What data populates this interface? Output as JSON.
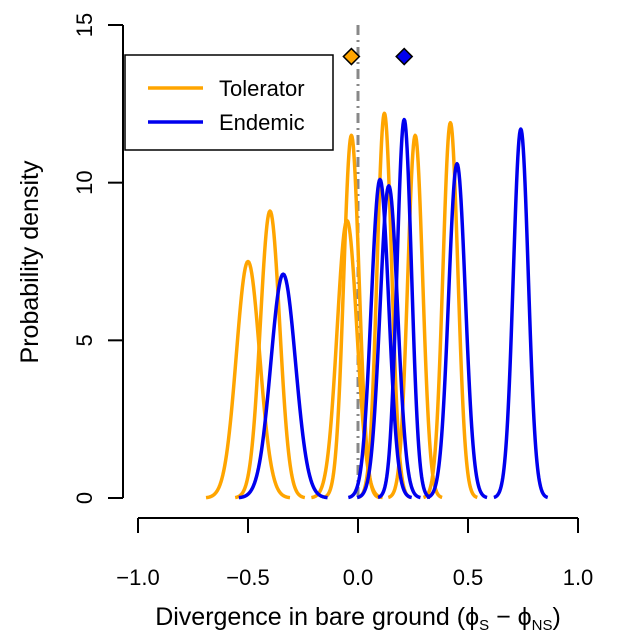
{
  "chart_data": {
    "type": "line",
    "xlabel": "Divergence in bare ground (",
    "xlabel_phi": "ϕ",
    "xlabel_sub1": "S",
    "xlabel_minus": " − ",
    "xlabel_sub2": "NS",
    "xlabel_close": ")",
    "ylabel": "Probability density",
    "xlim": [
      -1.0,
      1.0
    ],
    "ylim": [
      0,
      15
    ],
    "xticks": [
      -1.0,
      -0.5,
      0.0,
      0.5,
      1.0
    ],
    "xtick_labels": [
      "−1.0",
      "−0.5",
      "0.0",
      "0.5",
      "1.0"
    ],
    "yticks": [
      0,
      5,
      10,
      15
    ],
    "ytick_labels": [
      "0",
      "5",
      "10",
      "15"
    ],
    "legend_position": "top-left",
    "reference_line": {
      "x": 0.0,
      "style": "dash-dot",
      "color": "#888888"
    },
    "series": [
      {
        "name": "Tolerator",
        "color": "#FFA500",
        "mean_marker": {
          "x": -0.03,
          "y": 14.0
        },
        "curves": [
          {
            "mean": -0.5,
            "sd": 0.053,
            "peak": 7.5
          },
          {
            "mean": -0.4,
            "sd": 0.044,
            "peak": 9.1
          },
          {
            "mean": -0.05,
            "sd": 0.045,
            "peak": 8.8
          },
          {
            "mean": -0.03,
            "sd": 0.035,
            "peak": 11.5
          },
          {
            "mean": 0.12,
            "sd": 0.033,
            "peak": 12.2
          },
          {
            "mean": 0.26,
            "sd": 0.034,
            "peak": 11.5
          },
          {
            "mean": 0.42,
            "sd": 0.034,
            "peak": 11.9
          }
        ]
      },
      {
        "name": "Endemic",
        "color": "#0000EE",
        "mean_marker": {
          "x": 0.21,
          "y": 14.0
        },
        "curves": [
          {
            "mean": -0.34,
            "sd": 0.056,
            "peak": 7.1
          },
          {
            "mean": 0.1,
            "sd": 0.04,
            "peak": 10.1
          },
          {
            "mean": 0.14,
            "sd": 0.04,
            "peak": 9.9
          },
          {
            "mean": 0.21,
            "sd": 0.033,
            "peak": 12.0
          },
          {
            "mean": 0.45,
            "sd": 0.038,
            "peak": 10.6
          },
          {
            "mean": 0.74,
            "sd": 0.034,
            "peak": 11.7
          }
        ]
      }
    ]
  }
}
